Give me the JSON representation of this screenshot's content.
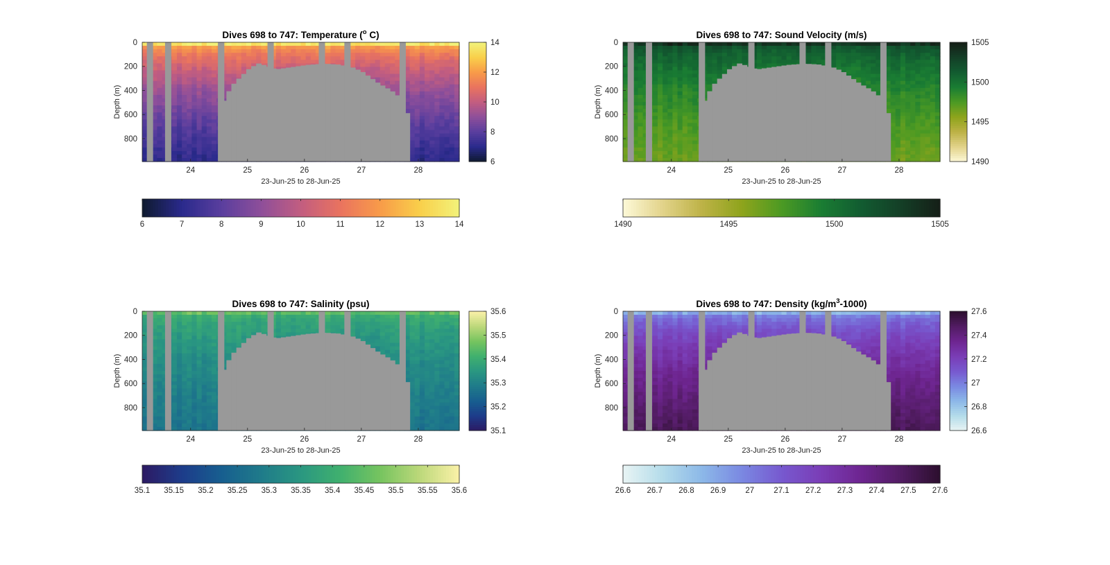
{
  "figure": {
    "background": "#ffffff",
    "land_color": "#999999"
  },
  "chart_data": [
    {
      "type": "heatmap",
      "id": "temperature",
      "title": "Dives 698 to 747: Temperature (°C)",
      "title_parts": [
        "Dives 698 to 747: Temperature (",
        "o",
        " C)"
      ],
      "xlabel": "23-Jun-25 to 28-Jun-25",
      "ylabel": "Depth (m)",
      "xlim": [
        23.15,
        28.72
      ],
      "ylim": [
        0,
        990
      ],
      "x_ticks": [
        24,
        25,
        26,
        27,
        28
      ],
      "x_tick_labels": [
        "24",
        "25",
        "26",
        "27",
        "28"
      ],
      "y_ticks": [
        0,
        200,
        400,
        600,
        800
      ],
      "y_tick_labels": [
        "0",
        "200",
        "400",
        "600",
        "800"
      ],
      "colorbar": {
        "range": [
          6,
          14
        ],
        "ticks_vertical": [
          "6",
          "8",
          "10",
          "12",
          "14"
        ],
        "ticks_horizontal": [
          "6",
          "7",
          "8",
          "9",
          "10",
          "11",
          "12",
          "13",
          "14"
        ],
        "colormap": [
          "#0e1a2e",
          "#2a2a8c",
          "#5a3e9e",
          "#8e4f9a",
          "#c25d80",
          "#e9735f",
          "#f89b49",
          "#f9cf4a",
          "#f2f27a"
        ]
      },
      "surface_value": 13.5,
      "bottom_value": 7.0
    },
    {
      "type": "heatmap",
      "id": "sound_velocity",
      "title": "Dives 698 to 747: Sound Velocity (m/s)",
      "title_parts": [
        "Dives 698 to 747: Sound Velocity (m/s)",
        "",
        ""
      ],
      "xlabel": "23-Jun-25 to 28-Jun-25",
      "ylabel": "Depth (m)",
      "xlim": [
        23.15,
        28.72
      ],
      "ylim": [
        0,
        990
      ],
      "x_ticks": [
        24,
        25,
        26,
        27,
        28
      ],
      "x_tick_labels": [
        "24",
        "25",
        "26",
        "27",
        "28"
      ],
      "y_ticks": [
        0,
        200,
        400,
        600,
        800
      ],
      "y_tick_labels": [
        "0",
        "200",
        "400",
        "600",
        "800"
      ],
      "colorbar": {
        "range": [
          1490,
          1505
        ],
        "ticks_vertical": [
          "1490",
          "1495",
          "1500",
          "1505"
        ],
        "ticks_horizontal": [
          "1490",
          "1495",
          "1500",
          "1505"
        ],
        "colormap": [
          "#fdf9d8",
          "#e2d38a",
          "#bdb246",
          "#8ea41c",
          "#4c9a23",
          "#1a7d33",
          "#125c31",
          "#143f27",
          "#151f17"
        ]
      },
      "surface_value": 1503.5,
      "bottom_value": 1496.5
    },
    {
      "type": "heatmap",
      "id": "salinity",
      "title": "Dives 698 to 747: Salinity (psu)",
      "title_parts": [
        "Dives 698 to 747: Salinity (psu)",
        "",
        ""
      ],
      "xlabel": "23-Jun-25 to 28-Jun-25",
      "ylabel": "Depth (m)",
      "xlim": [
        23.15,
        28.72
      ],
      "ylim": [
        0,
        990
      ],
      "x_ticks": [
        24,
        25,
        26,
        27,
        28
      ],
      "x_tick_labels": [
        "24",
        "25",
        "26",
        "27",
        "28"
      ],
      "y_ticks": [
        0,
        200,
        400,
        600,
        800
      ],
      "y_tick_labels": [
        "0",
        "200",
        "400",
        "600",
        "800"
      ],
      "colorbar": {
        "range": [
          35.1,
          35.6
        ],
        "ticks_vertical": [
          "35.1",
          "35.2",
          "35.3",
          "35.4",
          "35.5",
          "35.6"
        ],
        "ticks_horizontal": [
          "35.1",
          "35.15",
          "35.2",
          "35.25",
          "35.3",
          "35.35",
          "35.4",
          "35.45",
          "35.5",
          "35.55",
          "35.6"
        ],
        "colormap": [
          "#2c1a63",
          "#1d3c8a",
          "#175e8f",
          "#1f7b8a",
          "#2a9781",
          "#40b06e",
          "#76c45f",
          "#bcd87a",
          "#fbf1a8"
        ]
      },
      "surface_value": 35.44,
      "bottom_value": 35.27
    },
    {
      "type": "heatmap",
      "id": "density",
      "title": "Dives 698 to 747: Density (kg/m³-1000)",
      "title_parts": [
        "Dives 698 to 747: Density (kg/m",
        "3",
        "-1000)"
      ],
      "xlabel": "23-Jun-25 to 28-Jun-25",
      "ylabel": "Depth (m)",
      "xlim": [
        23.15,
        28.72
      ],
      "ylim": [
        0,
        990
      ],
      "x_ticks": [
        24,
        25,
        26,
        27,
        28
      ],
      "x_tick_labels": [
        "24",
        "25",
        "26",
        "27",
        "28"
      ],
      "y_ticks": [
        0,
        200,
        400,
        600,
        800
      ],
      "y_tick_labels": [
        "0",
        "200",
        "400",
        "600",
        "800"
      ],
      "colorbar": {
        "range": [
          26.6,
          27.6
        ],
        "ticks_vertical": [
          "26.6",
          "26.8",
          "27",
          "27.2",
          "27.4",
          "27.6"
        ],
        "ticks_horizontal": [
          "26.6",
          "26.7",
          "26.8",
          "26.9",
          "27",
          "27.1",
          "27.2",
          "27.3",
          "27.4",
          "27.5",
          "27.6"
        ],
        "colormap": [
          "#e8f4f4",
          "#b4dcea",
          "#8cb8e8",
          "#7a88e2",
          "#7759cf",
          "#7a3db6",
          "#6e2590",
          "#521c63",
          "#2c0f2e"
        ]
      },
      "surface_value": 26.85,
      "bottom_value": 27.5
    }
  ],
  "shared": {
    "gap_columns_x": [
      23.28,
      23.6,
      24.53,
      25.4,
      26.3,
      26.75,
      27.72
    ],
    "land_profile": [
      {
        "x": 24.57,
        "depth": 500
      },
      {
        "x": 24.68,
        "depth": 400
      },
      {
        "x": 24.78,
        "depth": 330
      },
      {
        "x": 24.9,
        "depth": 280
      },
      {
        "x": 25.0,
        "depth": 230
      },
      {
        "x": 25.1,
        "depth": 200
      },
      {
        "x": 25.2,
        "depth": 175
      },
      {
        "x": 25.5,
        "depth": 225
      },
      {
        "x": 25.8,
        "depth": 205
      },
      {
        "x": 26.05,
        "depth": 188
      },
      {
        "x": 26.35,
        "depth": 178
      },
      {
        "x": 26.6,
        "depth": 185
      },
      {
        "x": 26.85,
        "depth": 210
      },
      {
        "x": 27.0,
        "depth": 240
      },
      {
        "x": 27.15,
        "depth": 290
      },
      {
        "x": 27.3,
        "depth": 340
      },
      {
        "x": 27.45,
        "depth": 380
      },
      {
        "x": 27.62,
        "depth": 430
      },
      {
        "x": 27.82,
        "depth": 600
      },
      {
        "x": 27.88,
        "depth": 990
      }
    ]
  }
}
